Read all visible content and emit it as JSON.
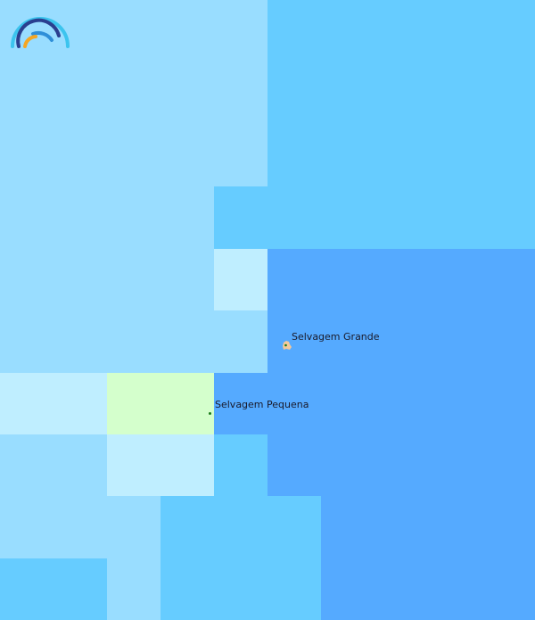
{
  "map": {
    "labels": {
      "selvagem_grande": "Selvagem Grande",
      "selvagem_pequena": "Selvagem Pequena"
    },
    "colors": {
      "depth_light": "#99DDFF",
      "depth_mid": "#66CCFF",
      "depth_deep": "#55AAFF",
      "shallow": "#BFEEFF",
      "green_zone": "#D4FFCC",
      "island_land": "#F5C99A",
      "marker": "#1a7a1a"
    },
    "logo": {
      "icon": "rainbow-arcs-logo"
    }
  }
}
